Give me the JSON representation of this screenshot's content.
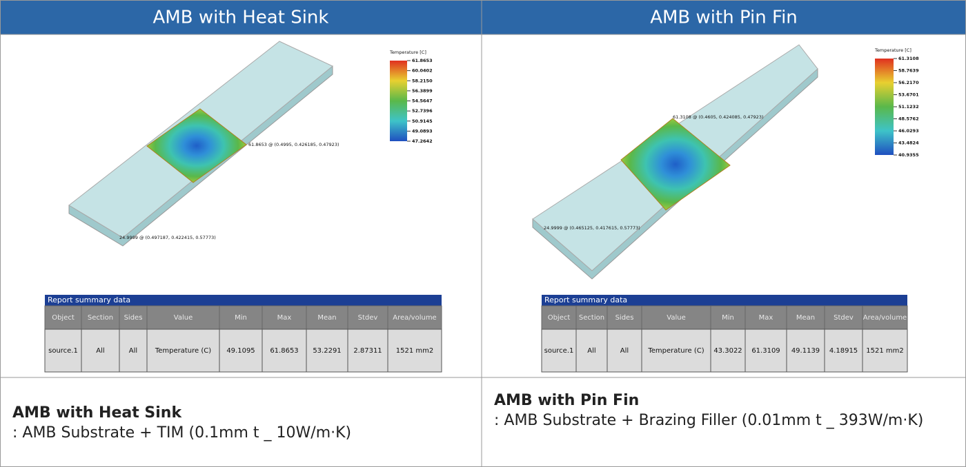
{
  "panels": [
    {
      "header": "AMB with Heat Sink",
      "legend": {
        "title": "Temperature [C]",
        "values": [
          "61.8653",
          "60.0402",
          "58.2150",
          "56.3899",
          "54.5647",
          "52.7396",
          "50.9145",
          "49.0893",
          "47.2642"
        ]
      },
      "annotations": [
        "61.8653 @ (0.4995, 0.426185, 0.47923)",
        "24.9999 @ (0.497187, 0.422415, 0.57773)"
      ],
      "report": {
        "title": "Report summary data",
        "columns": [
          "Object",
          "Section",
          "Sides",
          "Value",
          "Min",
          "Max",
          "Mean",
          "Stdev",
          "Area/volume"
        ],
        "row": [
          "source.1",
          "All",
          "All",
          "Temperature (C)",
          "49.1095",
          "61.8653",
          "53.2291",
          "2.87311",
          "1521 mm2"
        ]
      },
      "caption": {
        "title": "AMB with Heat Sink",
        "text": ": AMB Substrate + TIM (0.1mm t _ 10W/m·K)"
      }
    },
    {
      "header": "AMB with Pin Fin",
      "legend": {
        "title": "Temperature [C]",
        "values": [
          "61.3108",
          "58.7639",
          "56.2170",
          "53.6701",
          "51.1232",
          "48.5762",
          "46.0293",
          "43.4824",
          "40.9355"
        ]
      },
      "annotations": [
        "61.3108 @ (0.4605, 0.424085, 0.47923)",
        "24.9999 @ (0.465125, 0.417615, 0.57773)"
      ],
      "report": {
        "title": "Report summary data",
        "columns": [
          "Object",
          "Section",
          "Sides",
          "Value",
          "Min",
          "Max",
          "Mean",
          "Stdev",
          "Area/volume"
        ],
        "row": [
          "source.1",
          "All",
          "All",
          "Temperature (C)",
          "43.3022",
          "61.3109",
          "49.1139",
          "4.18915",
          "1521 mm2"
        ]
      },
      "caption": {
        "title": "AMB with Pin Fin",
        "text": ": AMB Substrate + Brazing Filler (0.01mm t _ 393W/m·K)"
      }
    }
  ]
}
